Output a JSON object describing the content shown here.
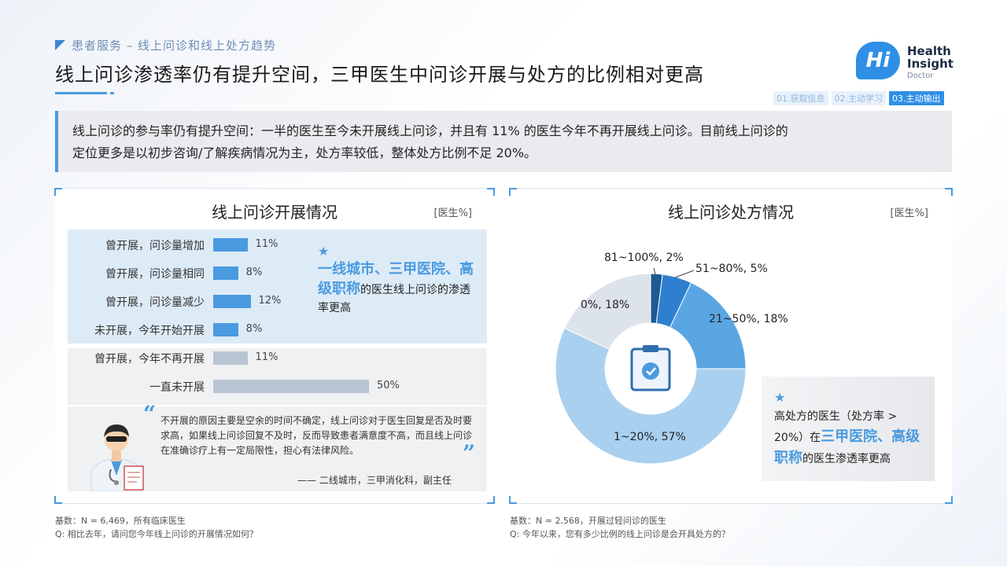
{
  "header": {
    "kicker": "患者服务 – 线上问诊和线上处方趋势",
    "title": "线上问诊渗透率仍有提升空间，三甲医生中问诊开展与处方的比例相对更高"
  },
  "logo": {
    "mark": "Hi",
    "line1": "Health",
    "line2": "Insight",
    "line3": "Doctor"
  },
  "steps": [
    "01.获取信息",
    "02.主动学习",
    "03.主动输出"
  ],
  "summary": {
    "line1": "线上问诊的参与率仍有提升空间：一半的医生至今未开展线上问诊，并且有 11% 的医生今年不再开展线上问诊。目前线上问诊的",
    "line2": "定位更多是以初步咨询/了解疾病情况为主，处方率较低，整体处方比例不足 20%。"
  },
  "left": {
    "title": "线上问诊开展情况",
    "unit": "[医生%]",
    "star": "★",
    "callout_hl": "一线城市、三甲医院、高级职称",
    "callout_rest": "的医生线上问诊的渗透率更高",
    "quote": "不开展的原因主要是空余的时间不确定，线上问诊对于医生回复是否及时要求高，如果线上问诊回复不及时，反而导致患者满意度不高，而且线上问诊在准确诊疗上有一定局限性，担心有法律风险。",
    "attribution": "—— 二线城市，三甲消化科，副主任",
    "footnote1": "基数：N = 6,469，所有临床医生",
    "footnote2": "Q: 相比去年，请问您今年线上问诊的开展情况如何？"
  },
  "right": {
    "title": "线上问诊处方情况",
    "unit": "[医生%]",
    "star": "★",
    "callout_a": "高处方的医生（处方率 > 20%）在",
    "callout_hl": "三甲医院、高级职称",
    "callout_b": "的医生渗透率更高",
    "footnote1": "基数：N = 2,568，开展过轻问诊的医生",
    "footnote2": "Q: 今年以来，您有多少比例的线上问诊是会开具处方的？"
  },
  "chart_data": [
    {
      "type": "bar",
      "orientation": "horizontal",
      "title": "线上问诊开展情况",
      "unit": "[医生%]",
      "categories": [
        "曾开展，问诊量增加",
        "曾开展，问诊量相同",
        "曾开展，问诊量减少",
        "未开展，今年开始开展",
        "曾开展，今年不再开展",
        "一直未开展"
      ],
      "values": [
        11,
        8,
        12,
        8,
        11,
        50
      ],
      "value_labels": [
        "11%",
        "8%",
        "12%",
        "8%",
        "11%",
        "50%"
      ],
      "colors": [
        "#4a9ae0",
        "#4a9ae0",
        "#4a9ae0",
        "#4a9ae0",
        "#b9c5d3",
        "#b9c5d3"
      ],
      "xlim": [
        0,
        50
      ]
    },
    {
      "type": "pie",
      "style": "donut",
      "title": "线上问诊处方情况",
      "unit": "[医生%]",
      "categories": [
        "81~100%",
        "51~80%",
        "21~50%",
        "1~20%",
        "0%"
      ],
      "values": [
        2,
        5,
        18,
        57,
        18
      ],
      "labels": [
        "81~100%, 2%",
        "51~80%, 5%",
        "21~50%, 18%",
        "1~20%, 57%",
        "0%, 18%"
      ],
      "colors": [
        "#1d5a93",
        "#2f7fd0",
        "#5aa6e3",
        "#a9d0ef",
        "#dde3ea"
      ]
    }
  ]
}
